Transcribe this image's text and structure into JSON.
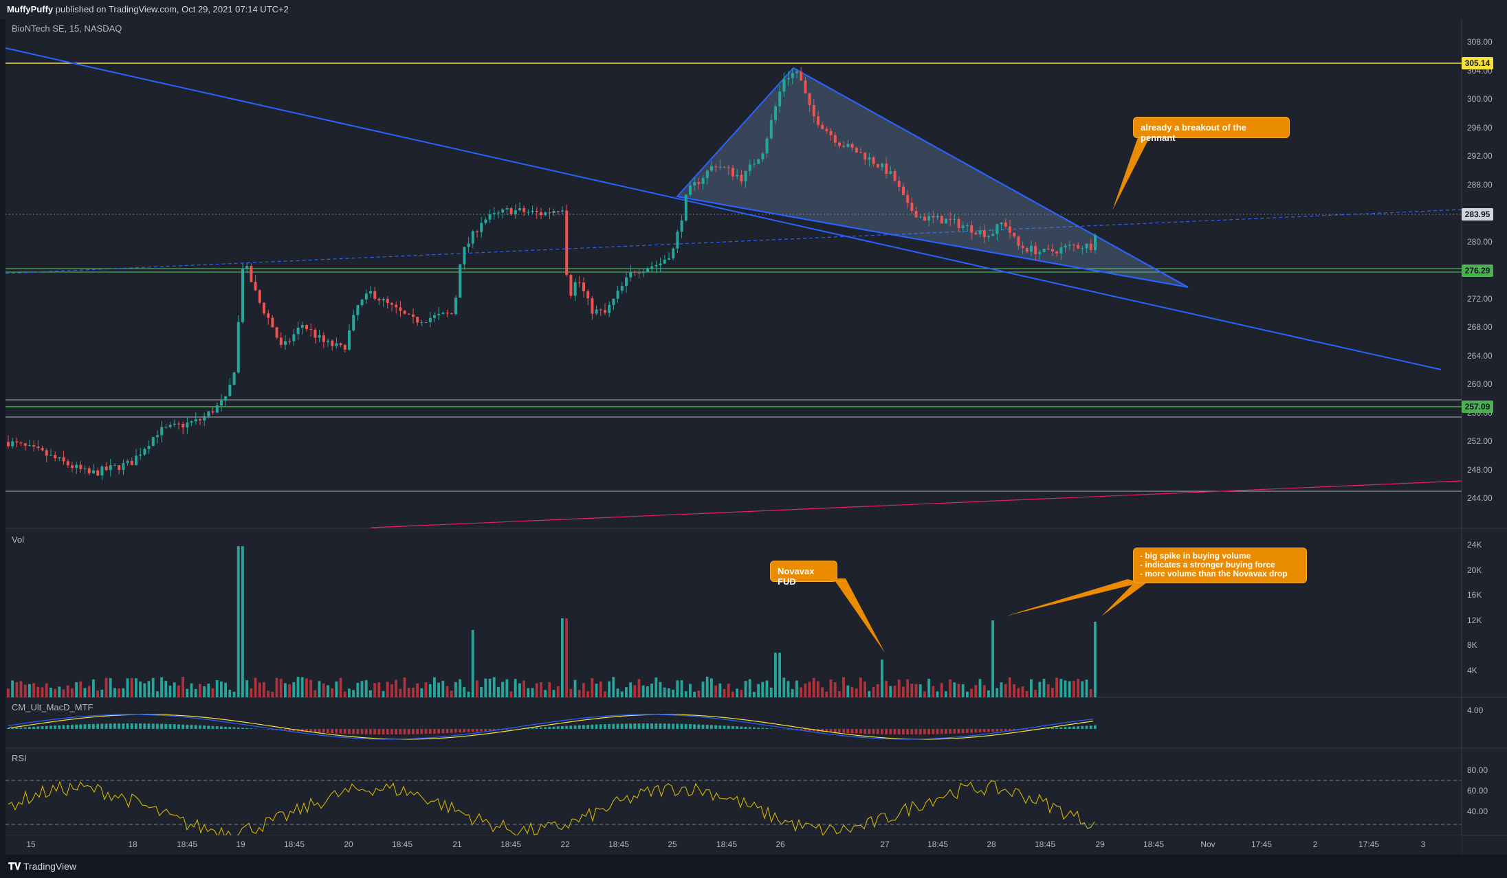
{
  "header": {
    "author": "MuffyPuffy",
    "published_text": "published on TradingView.com, Oct 29, 2021 07:14 UTC+2"
  },
  "symbol": {
    "title": "BioNTech SE, 15, NASDAQ"
  },
  "panes": {
    "volume_label": "Vol",
    "macd_label": "CM_Ult_MacD_MTF",
    "rsi_label": "RSI"
  },
  "price_axis": {
    "ticks": [
      "308.00",
      "304.00",
      "300.00",
      "296.00",
      "292.00",
      "288.00",
      "280.00",
      "276.00",
      "272.00",
      "268.00",
      "264.00",
      "260.00",
      "256.00",
      "252.00",
      "248.00",
      "244.00"
    ],
    "tags": [
      {
        "label": "305.14",
        "bg": "#f7e13b",
        "fg": "#131722"
      },
      {
        "label": "283.95",
        "bg": "#d1d4dc",
        "fg": "#131722"
      },
      {
        "label": "276.29",
        "bg": "#4caf50",
        "fg": "#131722"
      },
      {
        "label": "257.09",
        "bg": "#4caf50",
        "fg": "#131722"
      }
    ]
  },
  "volume_axis": {
    "ticks": [
      "24K",
      "20K",
      "16K",
      "12K",
      "8K",
      "4K"
    ]
  },
  "macd_axis": {
    "ticks": [
      "4.00"
    ]
  },
  "rsi_axis": {
    "ticks": [
      "80.00",
      "60.00",
      "40.00"
    ]
  },
  "time_axis": {
    "ticks": [
      "15",
      "18",
      "18:45",
      "19",
      "18:45",
      "20",
      "18:45",
      "21",
      "18:45",
      "22",
      "18:45",
      "25",
      "18:45",
      "26",
      "27",
      "18:45",
      "28",
      "18:45",
      "29",
      "18:45",
      "Nov",
      "17:45",
      "2",
      "17:45",
      "3"
    ]
  },
  "annotations": {
    "breakout": "already a breakout of the pennant",
    "novavax": "Novavax FUD",
    "volume_notes": [
      "- big spike in buying volume",
      "- indicates a stronger buying force",
      "- more volume than the Novavax drop"
    ]
  },
  "colors": {
    "up": "#26a69a",
    "down": "#ef5350",
    "trendline": "#2962ff",
    "resistance": "#f7e13b",
    "support": "#4caf50",
    "callout": "#ea8b00"
  },
  "footer": {
    "brand": "TradingView"
  }
}
